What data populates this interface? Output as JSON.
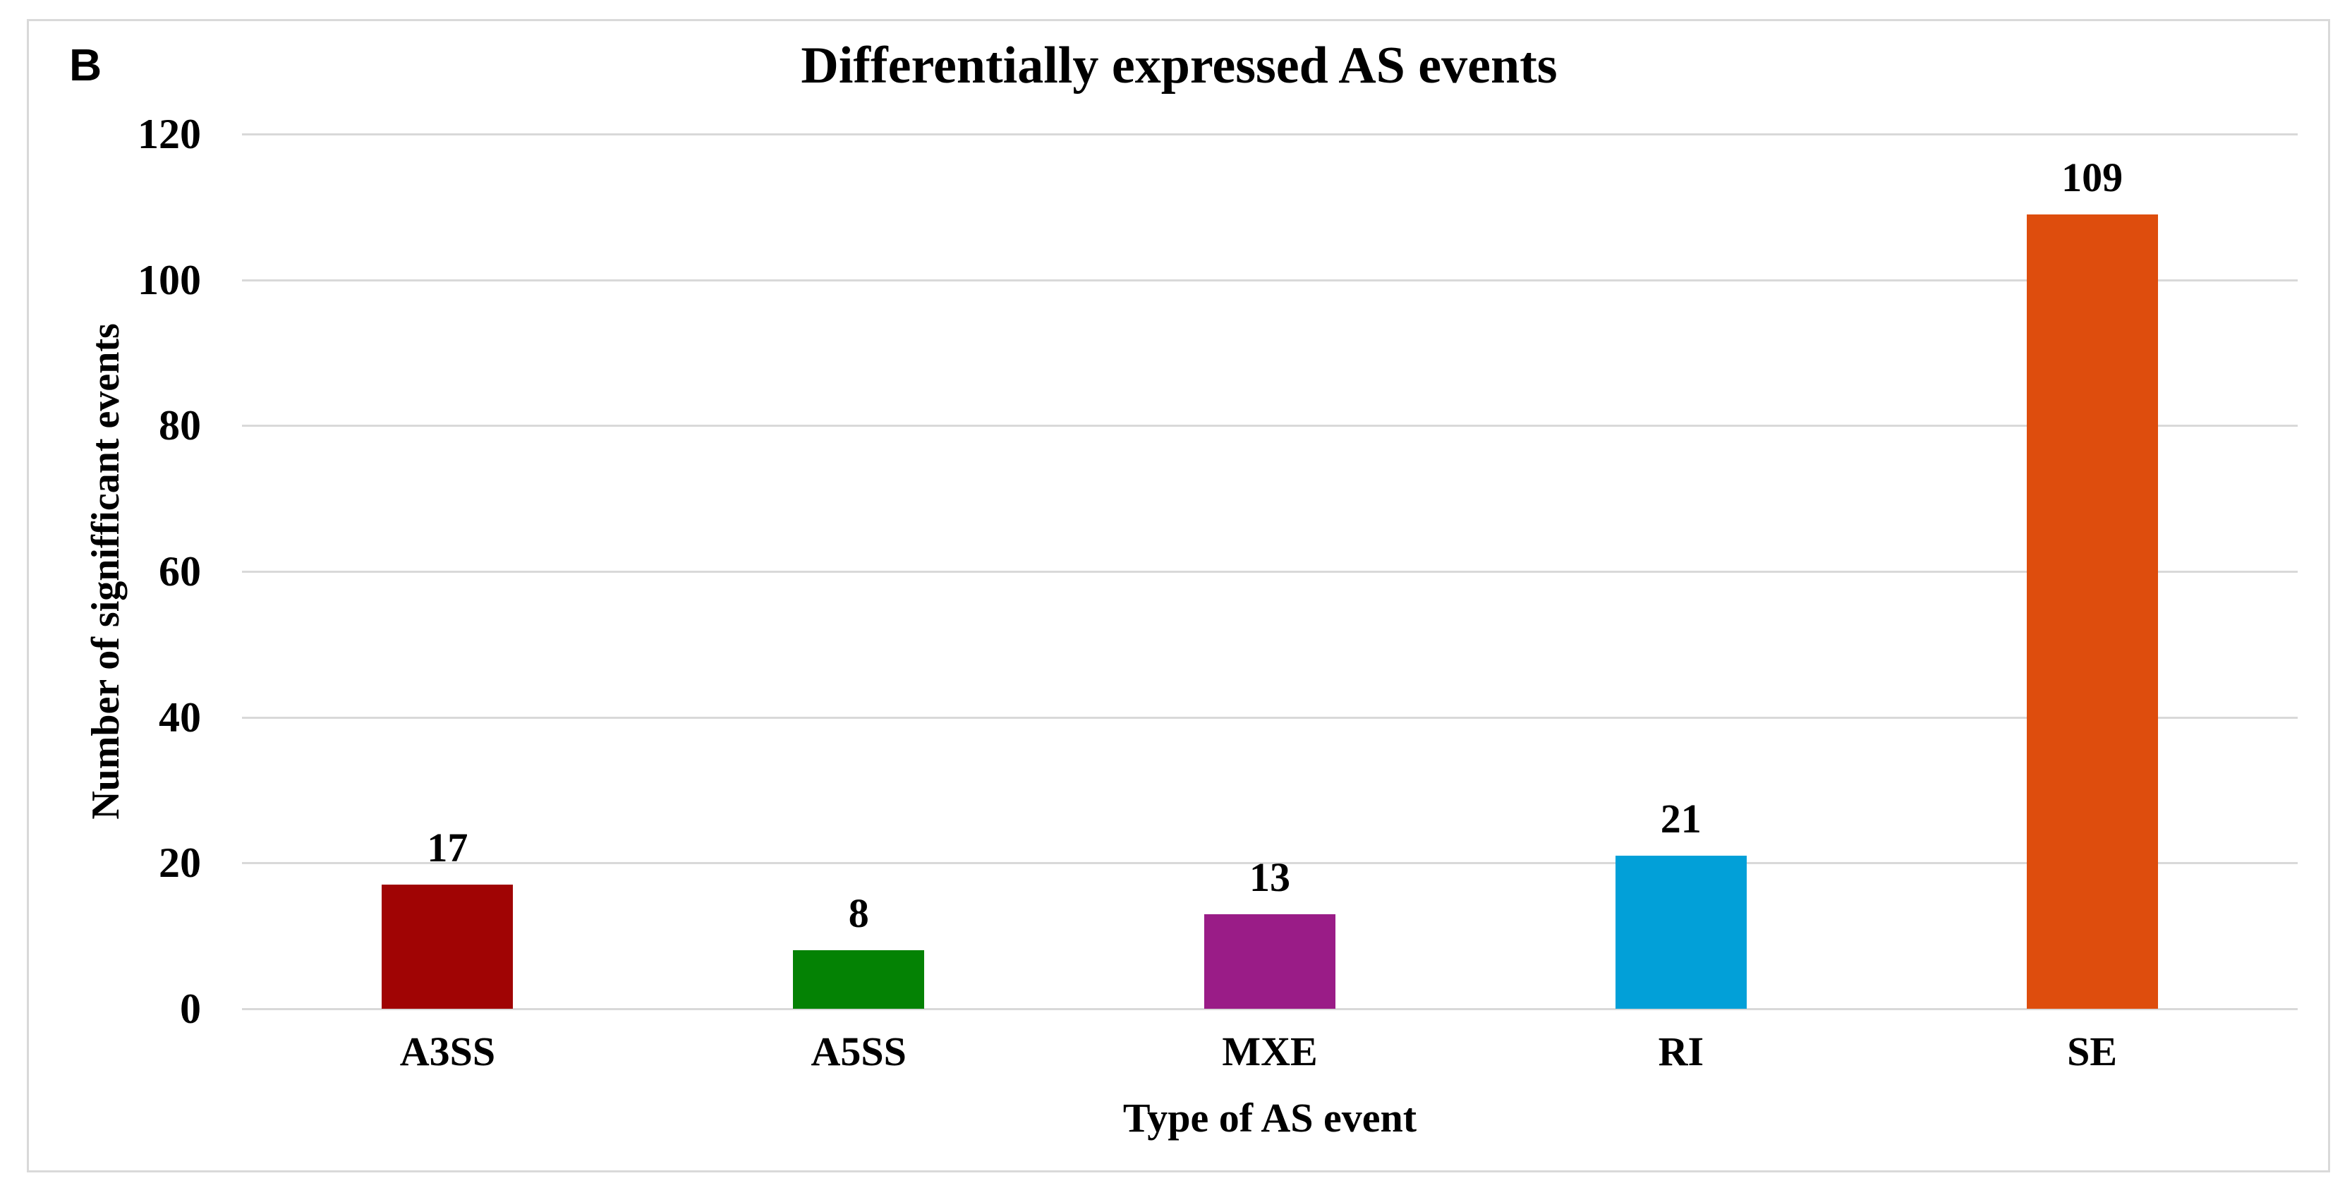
{
  "panel_label": "B",
  "chart_data": {
    "type": "bar",
    "title": "Differentially expressed AS events",
    "xlabel": "Type of AS event",
    "ylabel": "Number of signifficant events",
    "categories": [
      "A3SS",
      "A5SS",
      "MXE",
      "RI",
      "SE"
    ],
    "values": [
      17,
      8,
      13,
      21,
      109
    ],
    "data_labels": [
      "17",
      "8",
      "13",
      "21",
      "109"
    ],
    "bar_colors": [
      "#A00404",
      "#048204",
      "#9A1C87",
      "#02A0D8",
      "#DE4D0D"
    ],
    "ylim": [
      0,
      120
    ],
    "yticks": [
      0,
      20,
      40,
      60,
      80,
      100,
      120
    ],
    "grid": "horizontal-only",
    "legend": "none",
    "colors": {
      "background": "#ffffff",
      "gridline": "#d9d9d9",
      "frame_border": "#d9d9d9",
      "text": "#000000"
    }
  }
}
